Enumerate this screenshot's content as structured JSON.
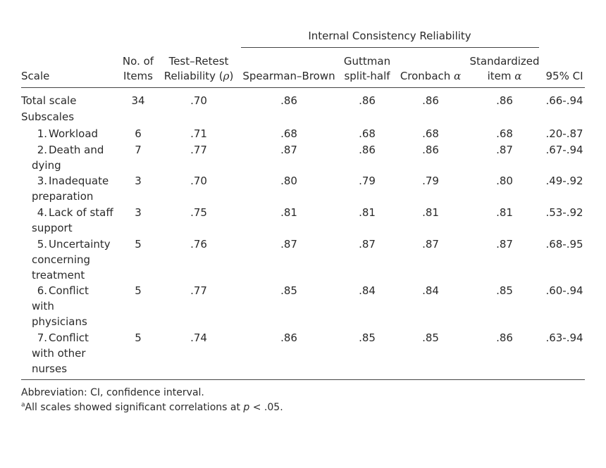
{
  "header": {
    "group_label": "Internal Consistency Reliability",
    "scale": "Scale",
    "items_line1": "No. of",
    "items_line2": "Items",
    "retest_line1": "Test–Retest",
    "retest_line2": "Reliability (",
    "retest_symbol": "ρ",
    "retest_close": ")",
    "spearman": "Spearman–Brown",
    "guttman_line1": "Guttman",
    "guttman_line2": "split-half",
    "cronbach": "Cronbach ",
    "alpha": "α",
    "std_line1": "Standardized",
    "std_line2": "item ",
    "ci": "95% CI"
  },
  "total": {
    "label": "Total scale",
    "items": "34",
    "retest": ".70",
    "spearman": ".86",
    "guttman": ".86",
    "cronbach": ".86",
    "std": ".86",
    "ci": ".66-.94"
  },
  "subscales_label": "Subscales",
  "rows": [
    {
      "num": "1.",
      "lines": [
        "Workload"
      ],
      "items": "6",
      "retest": ".71",
      "spearman": ".68",
      "guttman": ".68",
      "cronbach": ".68",
      "std": ".68",
      "ci": ".20-.87"
    },
    {
      "num": "2.",
      "lines": [
        "Death and",
        "dying"
      ],
      "items": "7",
      "retest": ".77",
      "spearman": ".87",
      "guttman": ".86",
      "cronbach": ".86",
      "std": ".87",
      "ci": ".67-.94"
    },
    {
      "num": "3.",
      "lines": [
        "Inadequate",
        "preparation"
      ],
      "items": "3",
      "retest": ".70",
      "spearman": ".80",
      "guttman": ".79",
      "cronbach": ".79",
      "std": ".80",
      "ci": ".49-.92"
    },
    {
      "num": "4.",
      "lines": [
        "Lack of staff",
        "support"
      ],
      "items": "3",
      "retest": ".75",
      "spearman": ".81",
      "guttman": ".81",
      "cronbach": ".81",
      "std": ".81",
      "ci": ".53-.92"
    },
    {
      "num": "5.",
      "lines": [
        "Uncertainty",
        "concerning",
        "treatment"
      ],
      "items": "5",
      "retest": ".76",
      "spearman": ".87",
      "guttman": ".87",
      "cronbach": ".87",
      "std": ".87",
      "ci": ".68-.95"
    },
    {
      "num": "6.",
      "lines": [
        "Conflict",
        "with",
        "physicians"
      ],
      "items": "5",
      "retest": ".77",
      "spearman": ".85",
      "guttman": ".84",
      "cronbach": ".84",
      "std": ".85",
      "ci": ".60-.94"
    },
    {
      "num": "7.",
      "lines": [
        "Conflict",
        "with other",
        "nurses"
      ],
      "items": "5",
      "retest": ".74",
      "spearman": ".86",
      "guttman": ".85",
      "cronbach": ".85",
      "std": ".86",
      "ci": ".63-.94"
    }
  ],
  "notes": {
    "abbreviation": "Abbreviation: CI, confidence interval.",
    "footnote_marker": "a",
    "footnote_text_a": "All scales showed significant correlations at ",
    "footnote_p": "p",
    "footnote_text_b": " < .05."
  }
}
